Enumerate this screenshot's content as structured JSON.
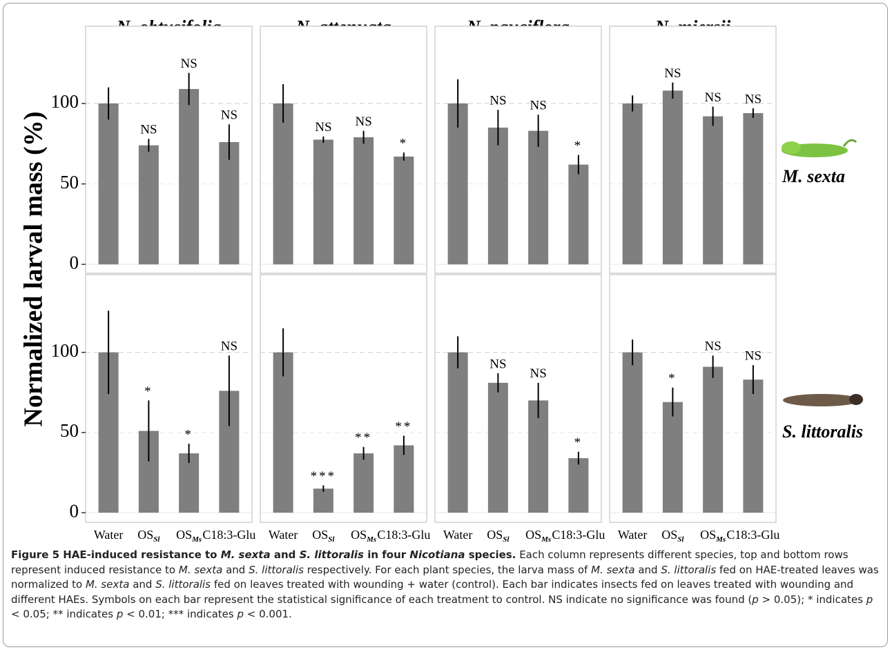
{
  "figure": {
    "ylabel": "Normalized larval mass (%)",
    "columns": [
      "N. obtusifolia",
      "N. attenuata",
      "N. pauciflora",
      "N. miersii"
    ],
    "rows": [
      "M. sexta",
      "S. littoralis"
    ],
    "categories": [
      {
        "label": "Water"
      },
      {
        "label": "OS",
        "sub": "Sl"
      },
      {
        "label": "OS",
        "sub": "Ms"
      },
      {
        "label": "C18:3-Glu"
      }
    ],
    "caption": [
      {
        "text": "Figure 5 HAE-induced resistance to ",
        "style": "bold"
      },
      {
        "text": "M. sexta",
        "style": "bold-italic"
      },
      {
        "text": " and ",
        "style": "bold"
      },
      {
        "text": "S. littoralis",
        "style": "bold-italic"
      },
      {
        "text": " in four ",
        "style": "bold"
      },
      {
        "text": "Nicotiana",
        "style": "bold-italic"
      },
      {
        "text": " species.",
        "style": "bold"
      },
      {
        "text": " Each column represents different species, top and bottom rows represent induced resistance to ",
        "style": "normal"
      },
      {
        "text": "M. sexta",
        "style": "italic"
      },
      {
        "text": " and ",
        "style": "normal"
      },
      {
        "text": "S. littoralis",
        "style": "italic"
      },
      {
        "text": " respectively. For each plant species, the larva mass of ",
        "style": "normal"
      },
      {
        "text": "M. sexta",
        "style": "italic"
      },
      {
        "text": " and ",
        "style": "normal"
      },
      {
        "text": "S. littoralis",
        "style": "italic"
      },
      {
        "text": " fed on HAE-treated leaves was normalized to ",
        "style": "normal"
      },
      {
        "text": "M. sexta",
        "style": "italic"
      },
      {
        "text": " and ",
        "style": "normal"
      },
      {
        "text": "S. littoralis",
        "style": "italic"
      },
      {
        "text": " fed on leaves treated with wounding + water (control). Each bar indicates insects fed on leaves treated with wounding and different HAEs. Symbols on each bar represent the statistical significance of each treatment to control. NS indicate no significance was found (",
        "style": "normal"
      },
      {
        "text": "p",
        "style": "italic"
      },
      {
        "text": " > 0.05); * indicates ",
        "style": "normal"
      },
      {
        "text": "p",
        "style": "italic"
      },
      {
        "text": " < 0.05; ** indicates ",
        "style": "normal"
      },
      {
        "text": "p",
        "style": "italic"
      },
      {
        "text": " < 0.01; *** indicates ",
        "style": "normal"
      },
      {
        "text": "p",
        "style": "italic"
      },
      {
        "text": " < 0.001.",
        "style": "normal"
      }
    ]
  },
  "chart_data": [
    {
      "type": "bar",
      "values": [
        100,
        74,
        109,
        76
      ],
      "errors": [
        10,
        4,
        10,
        11
      ],
      "annotations": [
        null,
        "NS",
        "NS",
        "NS"
      ],
      "color": "#7f7f7f",
      "ylim": [
        -5.5,
        148
      ],
      "yticks": [
        0,
        50,
        100
      ],
      "grid": true
    },
    {
      "type": "bar",
      "values": [
        100,
        77.5,
        79,
        67
      ],
      "errors": [
        12,
        2,
        4,
        2.5
      ],
      "annotations": [
        null,
        "NS",
        "NS",
        "*"
      ],
      "color": "#7f7f7f",
      "ylim": [
        -5.5,
        148
      ],
      "yticks": [
        0,
        50,
        100
      ],
      "grid": true
    },
    {
      "type": "bar",
      "values": [
        100,
        85,
        83,
        62
      ],
      "errors": [
        15,
        11,
        10,
        6
      ],
      "annotations": [
        null,
        "NS",
        "NS",
        "*"
      ],
      "color": "#7f7f7f",
      "ylim": [
        -5.5,
        148
      ],
      "yticks": [
        0,
        50,
        100
      ],
      "grid": true
    },
    {
      "type": "bar",
      "values": [
        100,
        108,
        92,
        94
      ],
      "errors": [
        5,
        5,
        6,
        3
      ],
      "annotations": [
        null,
        "NS",
        "NS",
        "NS"
      ],
      "color": "#7f7f7f",
      "ylim": [
        -5.5,
        148
      ],
      "yticks": [
        0,
        50,
        100
      ],
      "grid": true
    },
    {
      "type": "bar",
      "values": [
        100,
        51,
        37,
        76
      ],
      "errors": [
        26,
        19,
        6,
        22
      ],
      "annotations": [
        null,
        "*",
        "*",
        "NS"
      ],
      "color": "#7f7f7f",
      "ylim": [
        -6,
        148.5
      ],
      "yticks": [
        0,
        50,
        100
      ],
      "grid": true
    },
    {
      "type": "bar",
      "values": [
        100,
        15,
        37,
        42
      ],
      "errors": [
        15,
        2,
        4,
        6
      ],
      "annotations": [
        null,
        "***",
        "**",
        "**"
      ],
      "color": "#7f7f7f",
      "ylim": [
        -6,
        148.5
      ],
      "yticks": [
        0,
        50,
        100
      ],
      "grid": true
    },
    {
      "type": "bar",
      "values": [
        100,
        81,
        70,
        34
      ],
      "errors": [
        10,
        6,
        11,
        4
      ],
      "annotations": [
        null,
        "NS",
        "NS",
        "*"
      ],
      "color": "#7f7f7f",
      "ylim": [
        -6,
        148.5
      ],
      "yticks": [
        0,
        50,
        100
      ],
      "grid": true
    },
    {
      "type": "bar",
      "values": [
        100,
        69,
        91,
        83
      ],
      "errors": [
        8,
        9,
        7,
        9
      ],
      "annotations": [
        null,
        "*",
        "NS",
        "NS"
      ],
      "color": "#7f7f7f",
      "ylim": [
        -6,
        148.5
      ],
      "yticks": [
        0,
        50,
        100
      ],
      "grid": true
    }
  ]
}
